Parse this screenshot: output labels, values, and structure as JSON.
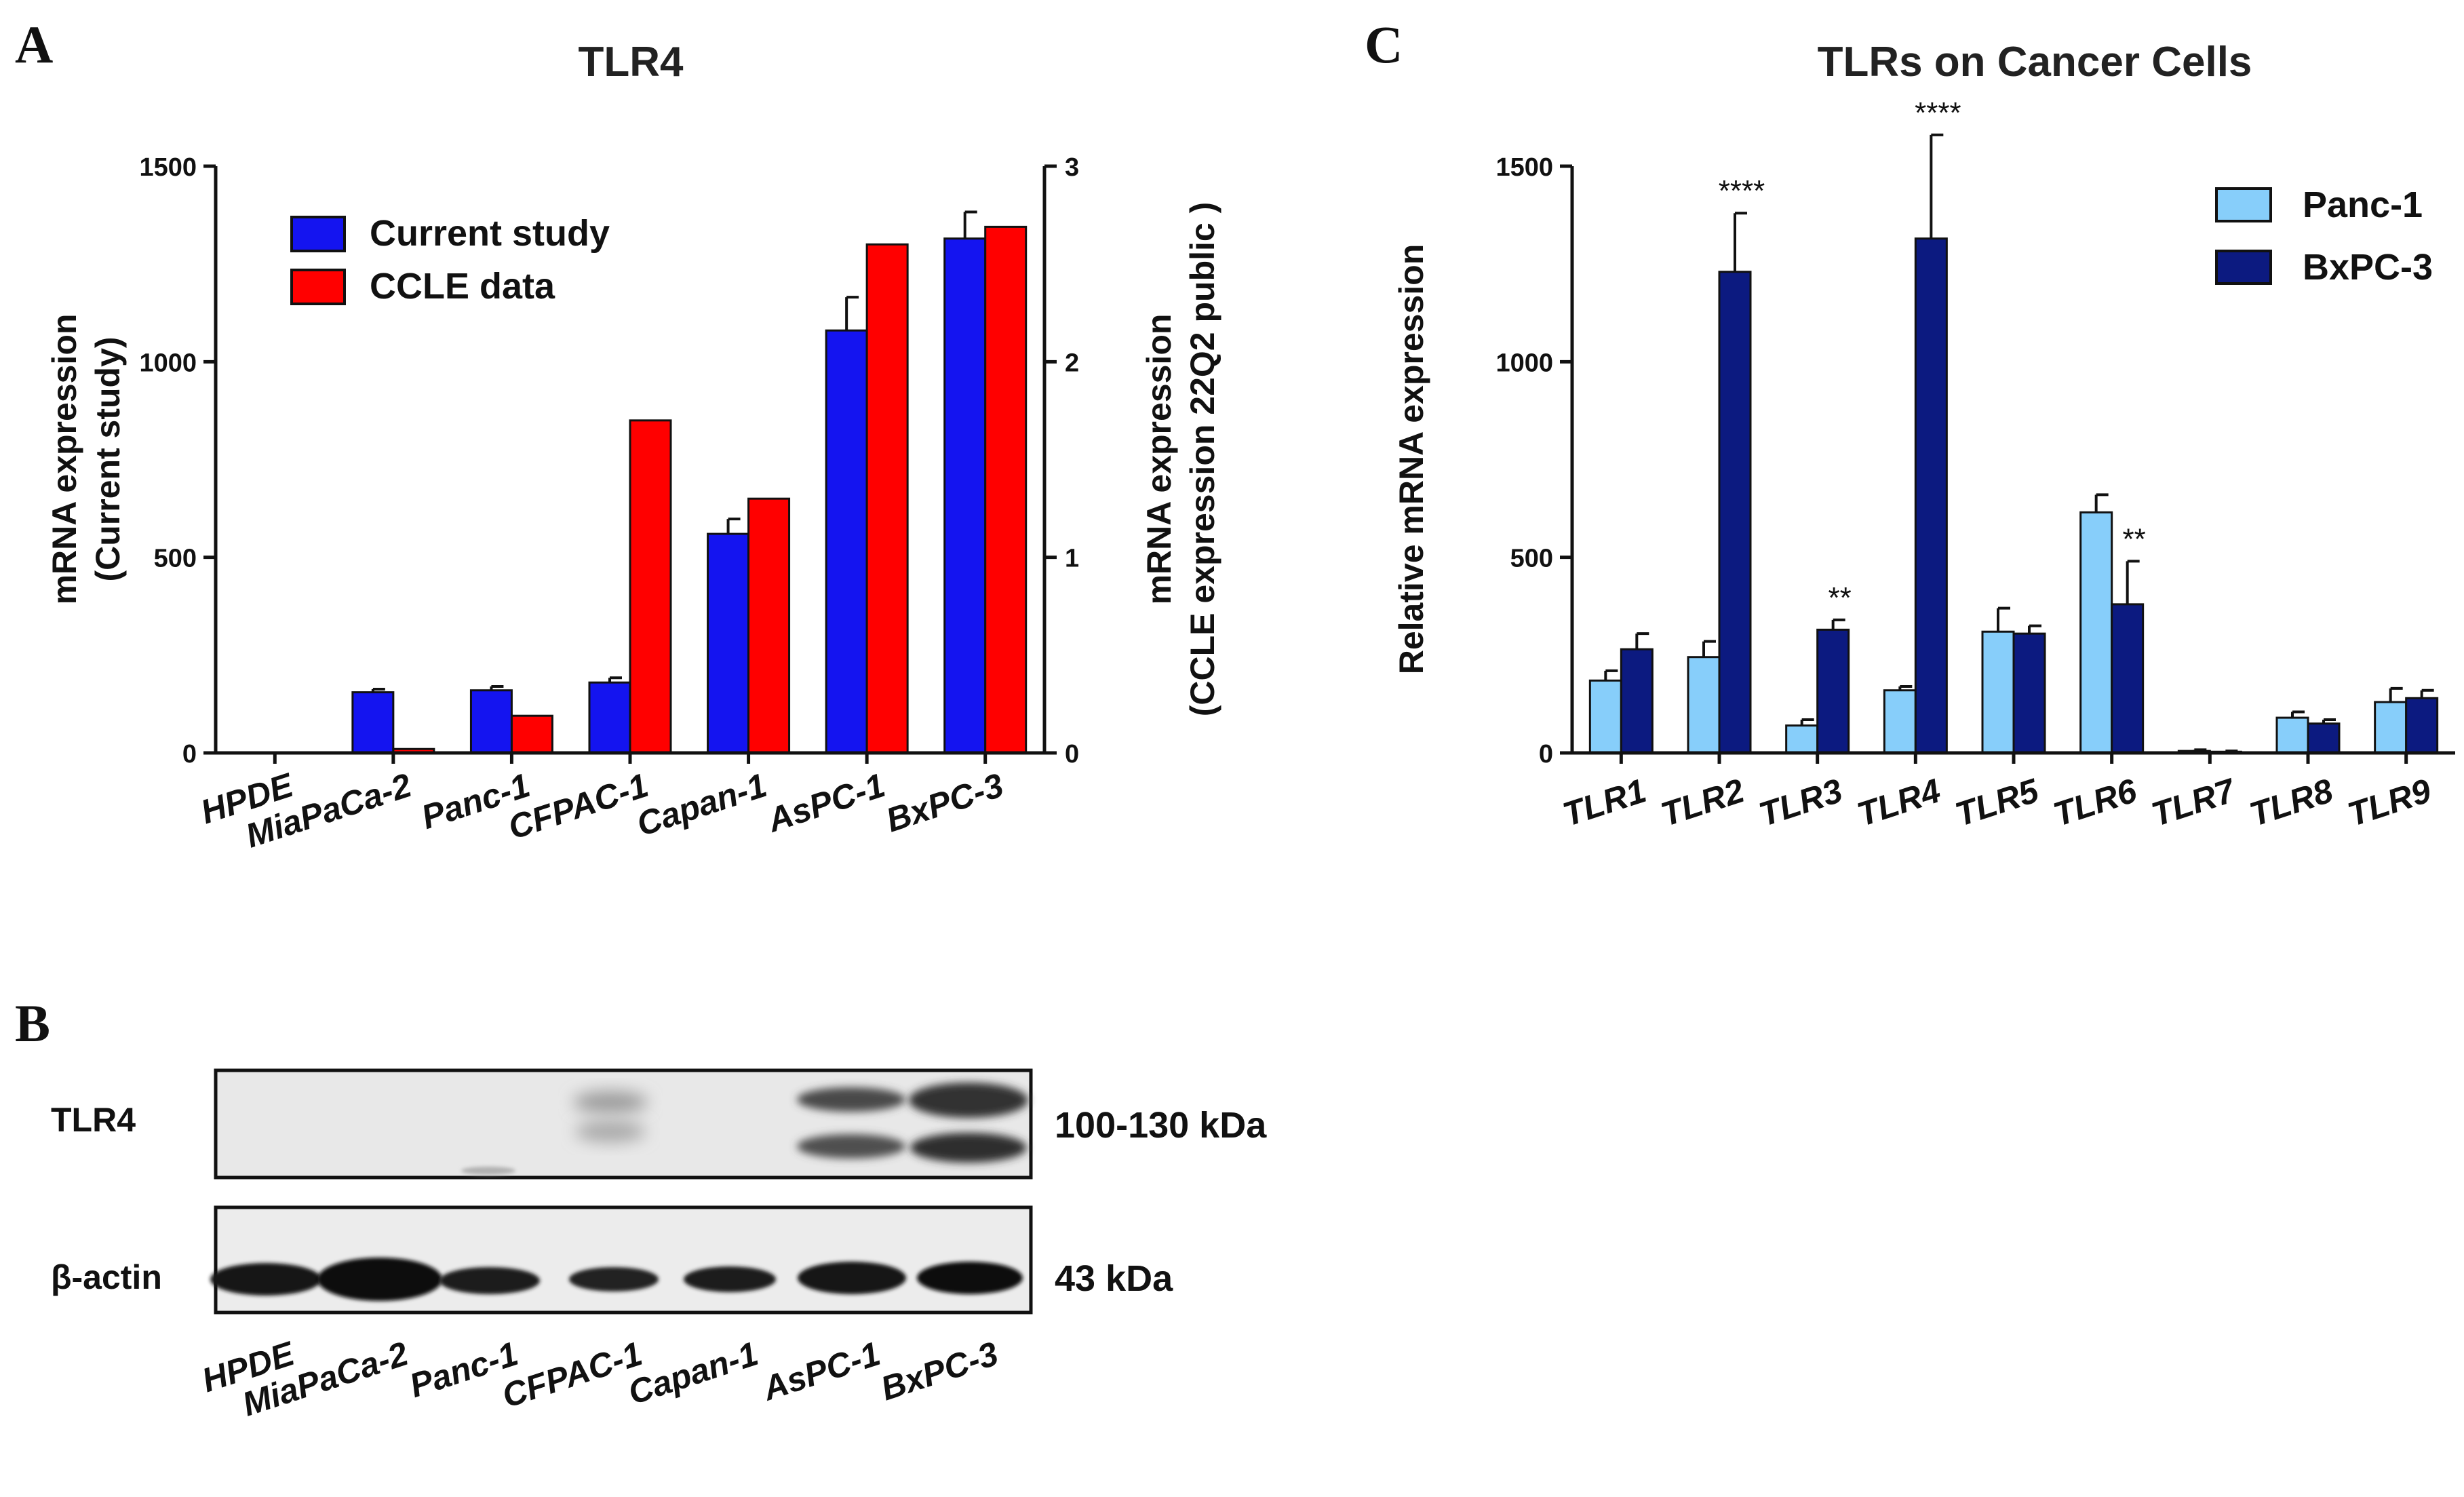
{
  "panels": {
    "a": "A",
    "b": "B",
    "c": "C"
  },
  "chart_data": [
    {
      "panel": "A",
      "type": "bar",
      "title": "TLR4",
      "ylabel": "mRNA expression",
      "ylabel2": "(Current study)",
      "y2label": "mRNA expression",
      "y2label2": "(CCLE expression 22Q2 public )",
      "ylim": [
        0,
        1500
      ],
      "y2lim": [
        0,
        3
      ],
      "yticks": [
        "0",
        "500",
        "1000",
        "1500"
      ],
      "y2ticks": [
        "0",
        "1",
        "2",
        "3"
      ],
      "categories": [
        "HPDE",
        "MiaPaCa-2",
        "Panc-1",
        "CFPAC-1",
        "Capan-1",
        "AsPC-1",
        "BxPC-3"
      ],
      "series": [
        {
          "name": "Current study",
          "axis": "left",
          "color": "#1414f0",
          "values": [
            0,
            155,
            160,
            180,
            560,
            1080,
            1315
          ],
          "errors": [
            0,
            8,
            10,
            12,
            38,
            85,
            68
          ]
        },
        {
          "name": "CCLE data",
          "axis": "right",
          "color": "#ff0000",
          "values": [
            0,
            0.02,
            0.19,
            1.7,
            1.3,
            2.6,
            2.69
          ]
        }
      ],
      "legend": "top-left"
    },
    {
      "panel": "C",
      "type": "bar",
      "title": "TLRs on Cancer Cells",
      "ylabel": "Relative mRNA expression",
      "ylim": [
        0,
        1500
      ],
      "yticks": [
        "0",
        "500",
        "1000",
        "1500"
      ],
      "categories": [
        "TLR1",
        "TLR2",
        "TLR3",
        "TLR4",
        "TLR5",
        "TLR6",
        "TLR7",
        "TLR8",
        "TLR9"
      ],
      "series": [
        {
          "name": "Panc-1",
          "color": "#87cefa",
          "values": [
            185,
            245,
            70,
            160,
            310,
            615,
            5,
            90,
            130
          ],
          "errors": [
            25,
            40,
            15,
            10,
            60,
            45,
            3,
            15,
            35
          ]
        },
        {
          "name": "BxPC-3",
          "color": "#0c1a80",
          "values": [
            265,
            1230,
            315,
            1315,
            305,
            380,
            3,
            75,
            140
          ],
          "errors": [
            40,
            150,
            25,
            265,
            20,
            110,
            2,
            10,
            20
          ]
        }
      ],
      "significance": [
        "",
        "****",
        "**",
        "****",
        "",
        "**",
        "",
        "",
        ""
      ],
      "legend": "top-right"
    }
  ],
  "blot": {
    "rows": [
      {
        "label": "TLR4",
        "kda": "100-130 kDa"
      },
      {
        "label": "β-actin",
        "kda": "43 kDa"
      }
    ],
    "lanes": [
      "HPDE",
      "MiaPaCa-2",
      "Panc-1",
      "CFPAC-1",
      "Capan-1",
      "AsPC-1",
      "BxPC-3"
    ]
  }
}
